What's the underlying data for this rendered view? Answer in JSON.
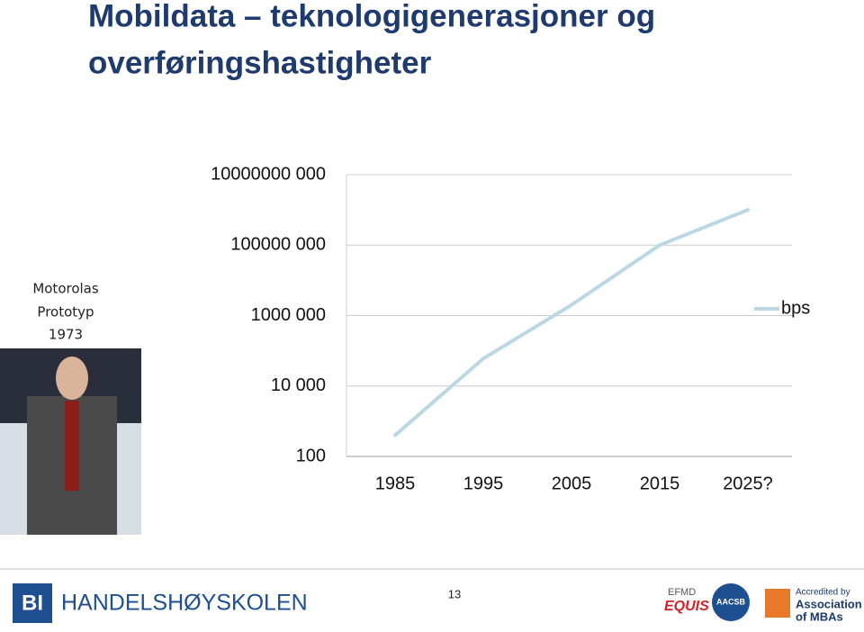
{
  "chart_data": {
    "type": "line",
    "title": "Mobildata – teknologigenerasjoner og overføringshastigheter",
    "categories": [
      "1985",
      "1995",
      "2005",
      "2015",
      "2025?"
    ],
    "series": [
      {
        "name": "bps",
        "color": "#bcd7e4",
        "values": [
          400,
          60000,
          2000000,
          100000000,
          1000000000
        ]
      }
    ],
    "ylim": [
      100,
      10000000000
    ],
    "yticks": [
      {
        "value": 100,
        "label": "100"
      },
      {
        "value": 10000,
        "label": "10 000"
      },
      {
        "value": 1000000,
        "label": "1000 000"
      },
      {
        "value": 100000000,
        "label": "100000 000"
      },
      {
        "value": 10000000000,
        "label": "10000000 000"
      }
    ],
    "log_scale": true,
    "grid": true,
    "legend": "right"
  },
  "slide": {
    "caption": [
      "Motorolas",
      "Prototyp",
      "1973"
    ],
    "logo": "BI",
    "school": "HANDELSHØYSKOLEN",
    "page": "13",
    "accreditations": [
      "EFMD",
      "EQUIS",
      "AACSB",
      "Accredited by",
      "Association",
      "of MBAs"
    ]
  }
}
